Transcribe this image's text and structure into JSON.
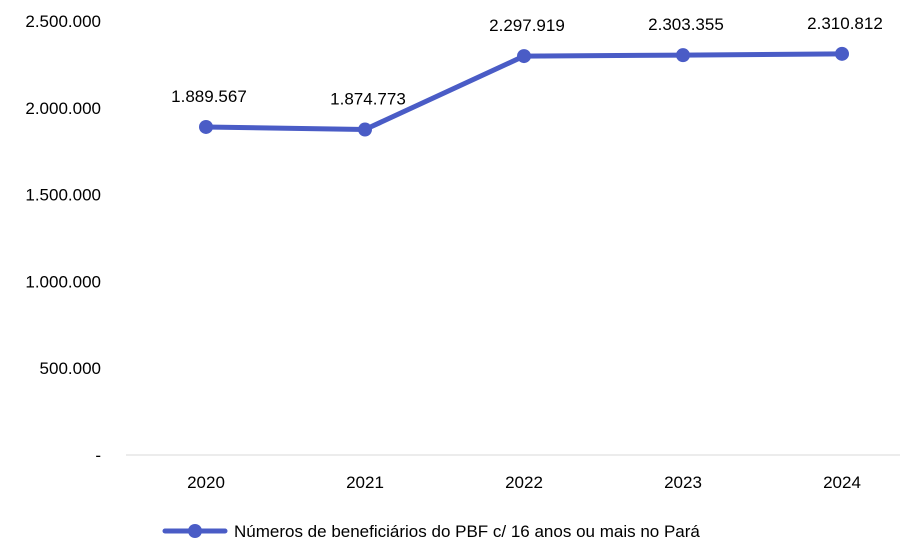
{
  "chart_data": {
    "type": "line",
    "title": "",
    "xlabel": "",
    "ylabel": "",
    "categories": [
      "2020",
      "2021",
      "2022",
      "2023",
      "2024"
    ],
    "ylim": [
      0,
      2500000
    ],
    "y_ticks": [
      0,
      500000,
      1000000,
      1500000,
      2000000,
      2500000
    ],
    "y_tick_labels": [
      "-",
      "500.000",
      "1.000.000",
      "1.500.000",
      "2.000.000",
      "2.500.000"
    ],
    "series": [
      {
        "name": "Números de beneficiários do PBF c/ 16 anos ou mais no Pará",
        "values": [
          1889567,
          1874773,
          2297919,
          2303355,
          2310812
        ],
        "data_labels": [
          "1.889.567",
          "1.874.773",
          "2.297.919",
          "2.303.355",
          "2.310.812"
        ],
        "color": "#4A5CC6"
      }
    ],
    "grid": false,
    "legend_position": "bottom",
    "data_labels_shown": true
  }
}
